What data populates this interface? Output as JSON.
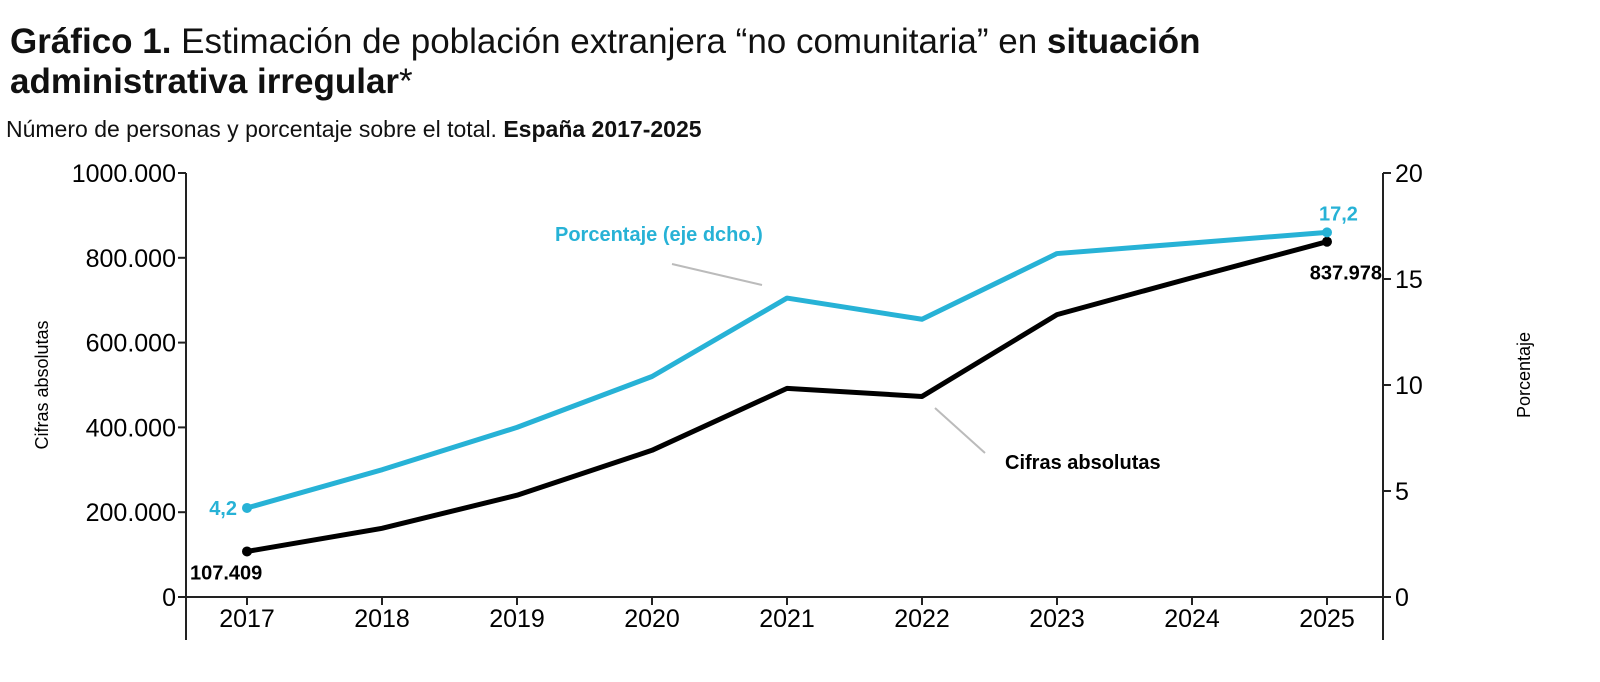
{
  "title": {
    "prefix": "Gráfico 1.",
    "main": " Estimación de población extranjera “no comunitaria” en ",
    "bold1": "situación administrativa irregular",
    "suffix": "*"
  },
  "subtitle": {
    "text": "Número de personas y porcentaje sobre el total. ",
    "bold": "España 2017-2025"
  },
  "chart_data": {
    "type": "line",
    "categories": [
      "2017",
      "2018",
      "2019",
      "2020",
      "2021",
      "2022",
      "2023",
      "2024",
      "2025"
    ],
    "ylabel": "Cifras absolutas",
    "y2label": "Porcentaje",
    "ylim": [
      0,
      1000000
    ],
    "y2lim": [
      0,
      20
    ],
    "yticks": [
      "0",
      "200.000",
      "400.000",
      "600.000",
      "800.000",
      "1000.000"
    ],
    "y2ticks": [
      "0",
      "5",
      "10",
      "15",
      "20"
    ],
    "grid": false,
    "series": [
      {
        "name": "Cifras absolutas",
        "axis": "left",
        "color": "#000000",
        "values": [
          107409,
          162000,
          240000,
          346000,
          492000,
          473000,
          666000,
          753000,
          837978
        ]
      },
      {
        "name": "Porcentaje (eje dcho.)",
        "axis": "right",
        "color": "#27b2d6",
        "values": [
          4.2,
          6.0,
          8.0,
          10.4,
          14.1,
          13.1,
          16.2,
          16.7,
          17.2
        ]
      }
    ],
    "annotations": {
      "first_abs": "107.409",
      "last_abs": "837.978",
      "first_pct": "4,2",
      "last_pct": "17,2"
    }
  }
}
